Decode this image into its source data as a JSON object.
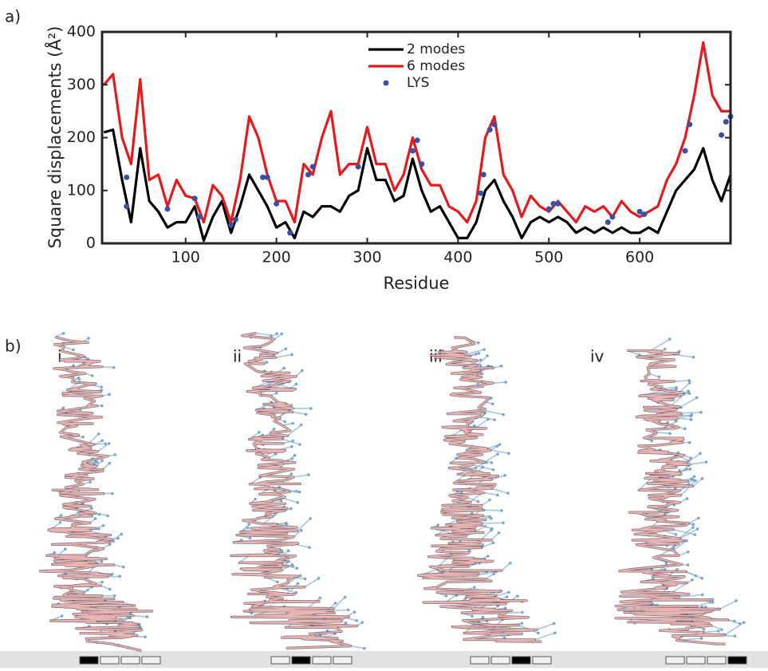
{
  "panel_labels": [
    "a)",
    "b)"
  ],
  "chart_data": {
    "type": "line",
    "xlabel": "Residue",
    "ylabel": "Square displacements (Å²)",
    "xlim": [
      8,
      700
    ],
    "ylim": [
      0,
      400
    ],
    "xticks": [
      100,
      200,
      300,
      400,
      500,
      600
    ],
    "yticks": [
      0,
      100,
      200,
      300,
      400
    ],
    "legend": "upper center",
    "series": [
      {
        "name": "2 modes",
        "color": "#000000",
        "kind": "line",
        "x": [
          10,
          20,
          30,
          40,
          50,
          60,
          70,
          80,
          90,
          100,
          110,
          120,
          130,
          140,
          150,
          160,
          170,
          180,
          190,
          200,
          210,
          220,
          230,
          240,
          250,
          260,
          270,
          280,
          290,
          300,
          310,
          320,
          330,
          340,
          350,
          360,
          370,
          380,
          390,
          400,
          410,
          420,
          430,
          440,
          450,
          460,
          470,
          480,
          490,
          500,
          510,
          520,
          530,
          540,
          550,
          560,
          570,
          580,
          590,
          600,
          610,
          620,
          630,
          640,
          650,
          660,
          670,
          680,
          690,
          700
        ],
        "values": [
          210,
          215,
          120,
          40,
          180,
          80,
          60,
          30,
          40,
          40,
          70,
          5,
          50,
          80,
          20,
          70,
          130,
          100,
          70,
          30,
          40,
          10,
          60,
          50,
          70,
          70,
          60,
          90,
          100,
          180,
          120,
          120,
          80,
          90,
          160,
          100,
          60,
          70,
          40,
          10,
          10,
          40,
          100,
          120,
          80,
          50,
          10,
          40,
          50,
          40,
          50,
          40,
          20,
          30,
          20,
          30,
          20,
          30,
          20,
          20,
          30,
          20,
          60,
          100,
          120,
          140,
          180,
          120,
          80,
          130
        ]
      },
      {
        "name": "6 modes",
        "color": "#e41a1c",
        "kind": "line",
        "x": [
          10,
          20,
          30,
          40,
          50,
          60,
          70,
          80,
          90,
          100,
          110,
          120,
          130,
          140,
          150,
          160,
          170,
          180,
          190,
          200,
          210,
          220,
          230,
          240,
          250,
          260,
          270,
          280,
          290,
          300,
          310,
          320,
          330,
          340,
          350,
          360,
          370,
          380,
          390,
          400,
          410,
          420,
          430,
          440,
          450,
          460,
          470,
          480,
          490,
          500,
          510,
          520,
          530,
          540,
          550,
          560,
          570,
          580,
          590,
          600,
          610,
          620,
          630,
          640,
          650,
          660,
          670,
          680,
          690,
          700
        ],
        "values": [
          300,
          320,
          200,
          150,
          310,
          120,
          130,
          70,
          120,
          90,
          85,
          40,
          110,
          90,
          40,
          120,
          240,
          200,
          130,
          80,
          80,
          40,
          150,
          130,
          200,
          250,
          130,
          150,
          150,
          220,
          150,
          150,
          100,
          130,
          200,
          140,
          110,
          110,
          70,
          60,
          40,
          80,
          200,
          240,
          130,
          100,
          50,
          90,
          70,
          60,
          80,
          60,
          40,
          70,
          60,
          70,
          50,
          80,
          60,
          50,
          60,
          70,
          120,
          150,
          200,
          280,
          380,
          280,
          250,
          250
        ]
      },
      {
        "name": "LYS",
        "color": "#3a4fa8",
        "kind": "scatter",
        "x": [
          35,
          35,
          80,
          110,
          115,
          150,
          155,
          185,
          190,
          200,
          215,
          235,
          240,
          290,
          350,
          355,
          360,
          425,
          428,
          435,
          440,
          500,
          505,
          510,
          565,
          570,
          600,
          605,
          650,
          655,
          690,
          695,
          700
        ],
        "values": [
          125,
          70,
          65,
          85,
          50,
          35,
          45,
          125,
          125,
          75,
          20,
          130,
          145,
          145,
          175,
          195,
          150,
          95,
          130,
          215,
          225,
          65,
          75,
          75,
          40,
          50,
          60,
          55,
          175,
          225,
          205,
          230,
          240
        ]
      }
    ]
  },
  "structures": [
    {
      "label": "i"
    },
    {
      "label": "ii"
    },
    {
      "label": "iii"
    },
    {
      "label": "iv"
    }
  ]
}
